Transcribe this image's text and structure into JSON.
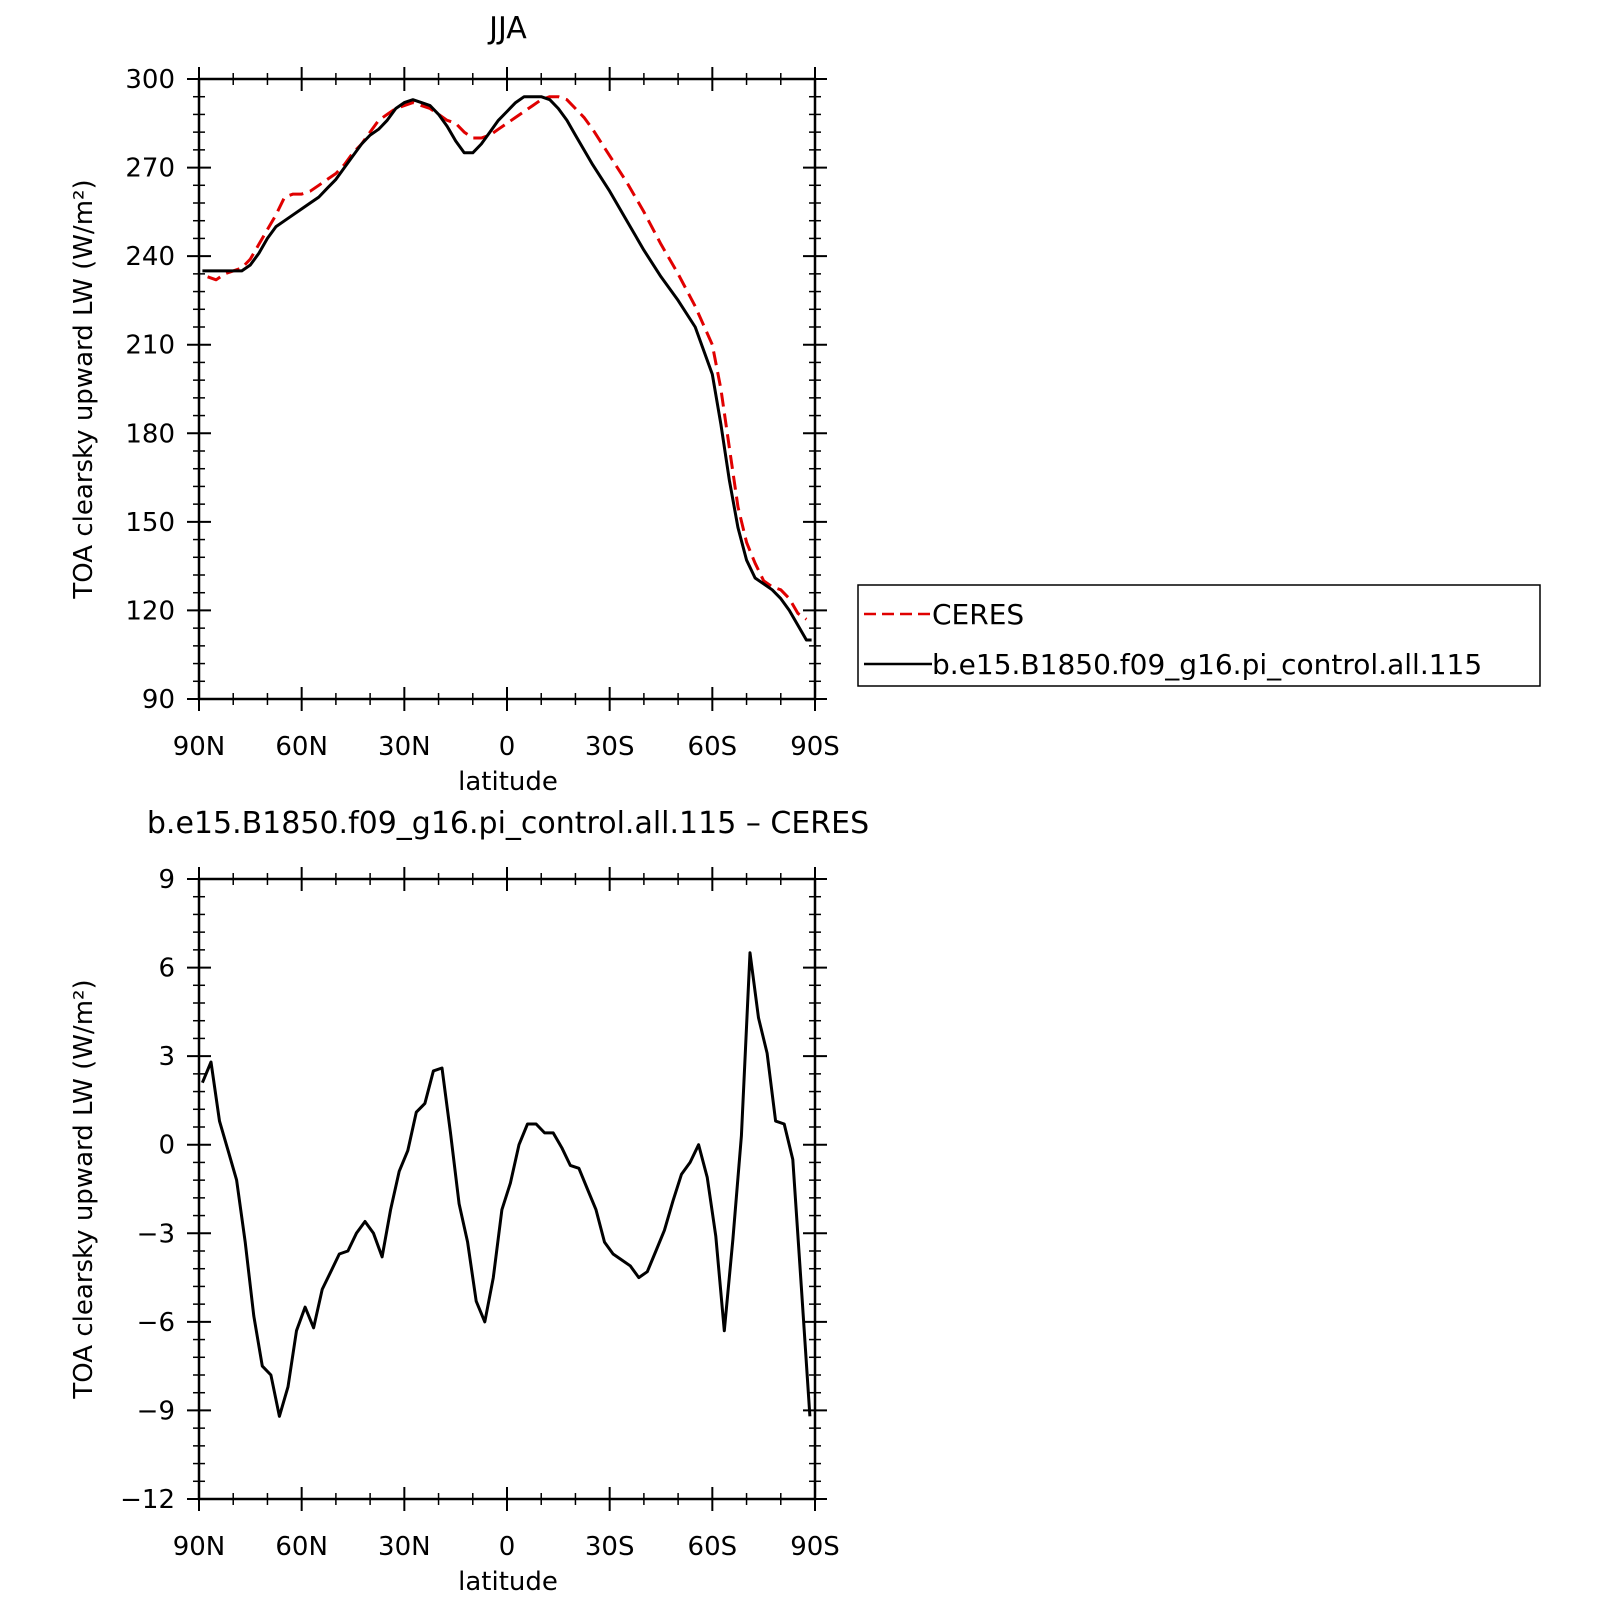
{
  "chart_data": [
    {
      "type": "line",
      "title": "JJA",
      "xlabel": "latitude",
      "ylabel": "TOA clearsky upward LW (W/m²)",
      "x_ticks": [
        {
          "value": 90,
          "label": "90N"
        },
        {
          "value": 60,
          "label": "60N"
        },
        {
          "value": 30,
          "label": "30N"
        },
        {
          "value": 0,
          "label": "0"
        },
        {
          "value": -30,
          "label": "30S"
        },
        {
          "value": -60,
          "label": "60S"
        },
        {
          "value": -90,
          "label": "90S"
        }
      ],
      "xlim": [
        90,
        -90
      ],
      "ylim": [
        90,
        300
      ],
      "y_ticks": [
        90,
        120,
        150,
        180,
        210,
        240,
        270,
        300
      ],
      "legend": "right",
      "series": [
        {
          "name": "CERES",
          "color": "#e00000",
          "dash": "dashed",
          "x": [
            87.5,
            85,
            82.5,
            80,
            77.5,
            75,
            72.5,
            70,
            67.5,
            65,
            62.5,
            60,
            57.5,
            55,
            52.5,
            50,
            47.5,
            45,
            42.5,
            40,
            37.5,
            35,
            32.5,
            30,
            27.5,
            25,
            22.5,
            20,
            17.5,
            15,
            12.5,
            10,
            7.5,
            5,
            2.5,
            0,
            -2.5,
            -5,
            -7.5,
            -10,
            -12.5,
            -15,
            -17.5,
            -20,
            -22.5,
            -25,
            -30,
            -35,
            -40,
            -45,
            -50,
            -55,
            -60,
            -62.5,
            -65,
            -67.5,
            -70,
            -72.5,
            -75,
            -77.5,
            -80,
            -82.5,
            -85,
            -87.5
          ],
          "y": [
            233,
            232,
            234,
            235,
            236,
            239,
            244,
            249,
            254,
            260,
            261,
            261,
            262,
            264,
            266,
            268,
            271,
            275,
            278,
            282,
            286,
            288,
            290,
            291,
            292,
            291,
            290,
            288,
            286,
            285,
            282,
            280,
            280,
            281,
            283,
            285,
            287,
            289,
            291,
            293,
            294,
            294,
            293,
            290,
            287,
            283,
            274,
            265,
            255,
            244,
            234,
            223,
            210,
            195,
            175,
            155,
            143,
            136,
            130,
            128,
            127,
            124,
            119,
            117
          ]
        },
        {
          "name": "b.e15.B1850.f09_g16.pi_control.all.115",
          "color": "#000000",
          "dash": "solid",
          "x": [
            89,
            87.5,
            85,
            82.5,
            80,
            77.5,
            75,
            72.5,
            70,
            67.5,
            65,
            62.5,
            60,
            57.5,
            55,
            52.5,
            50,
            47.5,
            45,
            42.5,
            40,
            37.5,
            35,
            32.5,
            30,
            27.5,
            25,
            22.5,
            20,
            17.5,
            15,
            12.5,
            10,
            7.5,
            5,
            2.5,
            0,
            -2.5,
            -5,
            -7.5,
            -10,
            -12.5,
            -15,
            -17.5,
            -20,
            -22.5,
            -25,
            -30,
            -35,
            -40,
            -45,
            -50,
            -55,
            -60,
            -62.5,
            -65,
            -67.5,
            -70,
            -72.5,
            -75,
            -77.5,
            -80,
            -82.5,
            -85,
            -87.5,
            -89
          ],
          "y": [
            235,
            235,
            235,
            235,
            235,
            235,
            237,
            241,
            246,
            250,
            252,
            254,
            256,
            258,
            260,
            263,
            266,
            270,
            274,
            278,
            281,
            283,
            286,
            290,
            292,
            293,
            292,
            291,
            288,
            284,
            279,
            275,
            275,
            278,
            282,
            286,
            289,
            292,
            294,
            294,
            294,
            293,
            290,
            286,
            281,
            276,
            271,
            262,
            252,
            242,
            233,
            225,
            216,
            200,
            183,
            164,
            148,
            137,
            131,
            129,
            127,
            124,
            120,
            115,
            110,
            110
          ]
        }
      ]
    },
    {
      "type": "line",
      "title": "b.e15.B1850.f09_g16.pi_control.all.115 – CERES",
      "xlabel": "latitude",
      "ylabel": "TOA clearsky upward LW (W/m²)",
      "x_ticks": [
        {
          "value": 90,
          "label": "90N"
        },
        {
          "value": 60,
          "label": "60N"
        },
        {
          "value": 30,
          "label": "30N"
        },
        {
          "value": 0,
          "label": "0"
        },
        {
          "value": -30,
          "label": "30S"
        },
        {
          "value": -60,
          "label": "60S"
        },
        {
          "value": -90,
          "label": "90S"
        }
      ],
      "xlim": [
        90,
        -90
      ],
      "ylim": [
        -12,
        9
      ],
      "y_ticks": [
        -12,
        -9,
        -6,
        -3,
        0,
        3,
        6,
        9
      ],
      "series": [
        {
          "color": "#000000",
          "dash": "solid",
          "x": [
            89,
            86.5,
            84,
            81.5,
            79,
            76.5,
            74,
            71.5,
            69,
            66.5,
            64,
            61.5,
            59,
            56.5,
            54,
            51.5,
            49,
            46.5,
            44,
            41.5,
            39,
            36.5,
            34,
            31.5,
            29,
            26.5,
            24,
            21.5,
            19,
            16.5,
            14,
            11.5,
            9,
            6.5,
            4,
            1.5,
            -1,
            -3.5,
            -6,
            -8.5,
            -11,
            -13.5,
            -16,
            -18.5,
            -21,
            -23.5,
            -26,
            -28.5,
            -31,
            -33.5,
            -36,
            -38.5,
            -41,
            -43.5,
            -46,
            -48.5,
            -51,
            -53.5,
            -56,
            -58.5,
            -61,
            -63.5,
            -66,
            -68.5,
            -71,
            -73.5,
            -76,
            -78.5,
            -81,
            -83.5,
            -86,
            -88.5
          ],
          "y": [
            2.1,
            2.8,
            0.8,
            -0.2,
            -1.2,
            -3.3,
            -5.8,
            -7.5,
            -7.8,
            -9.2,
            -8.2,
            -6.3,
            -5.5,
            -6.2,
            -4.9,
            -4.3,
            -3.7,
            -3.6,
            -3.0,
            -2.6,
            -3.0,
            -3.8,
            -2.2,
            -0.9,
            -0.2,
            1.1,
            1.4,
            2.5,
            2.6,
            0.4,
            -2.0,
            -3.3,
            -5.3,
            -6.0,
            -4.5,
            -2.2,
            -1.3,
            0.0,
            0.7,
            0.7,
            0.4,
            0.4,
            -0.1,
            -0.7,
            -0.8,
            -1.5,
            -2.2,
            -3.3,
            -3.7,
            -3.9,
            -4.1,
            -4.5,
            -4.3,
            -3.6,
            -2.9,
            -1.9,
            -1.0,
            -0.6,
            0.0,
            -1.1,
            -3.1,
            -6.3,
            -3.2,
            0.3,
            6.5,
            4.3,
            3.1,
            0.8,
            0.7,
            -0.5,
            -4.8,
            -9.2
          ]
        }
      ]
    }
  ],
  "legend": {
    "entries": [
      "CERES",
      "b.e15.B1850.f09_g16.pi_control.all.115"
    ]
  }
}
